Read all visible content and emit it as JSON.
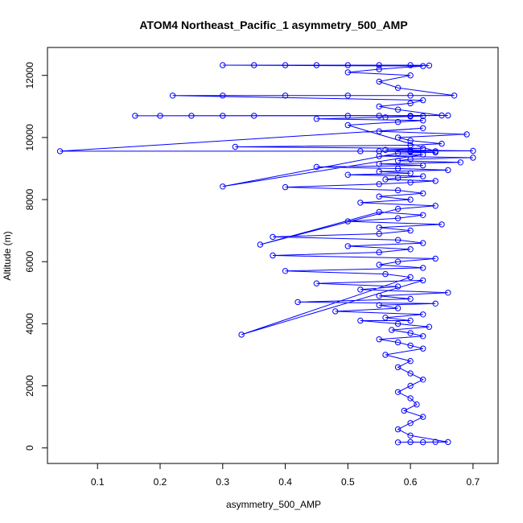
{
  "chart_data": {
    "type": "scatter",
    "title": "ATOM4 Northeast_Pacific_1 asymmetry_500_AMP",
    "xlabel": "asymmetry_500_AMP",
    "ylabel": "Altitude (m)",
    "xlim": [
      0.02,
      0.74
    ],
    "ylim": [
      -500,
      12900
    ],
    "x_ticks": [
      0.1,
      0.2,
      0.3,
      0.4,
      0.5,
      0.6,
      0.7
    ],
    "x_tick_labels": [
      "0.1",
      "0.2",
      "0.3",
      "0.4",
      "0.5",
      "0.6",
      "0.7"
    ],
    "y_ticks": [
      0,
      2000,
      4000,
      6000,
      8000,
      10000,
      12000
    ],
    "y_tick_labels": [
      "0",
      "2000",
      "4000",
      "6000",
      "8000",
      "10000",
      "12000"
    ],
    "series_color": "#0000ff",
    "marker": "open-circle",
    "connected": true,
    "grid": false,
    "legend": "none",
    "series": [
      {
        "x": [
          0.58,
          0.6,
          0.62,
          0.64,
          0.66,
          0.6,
          0.58,
          0.6,
          0.62,
          0.59,
          0.61,
          0.6,
          0.58,
          0.6,
          0.62,
          0.6,
          0.58,
          0.6,
          0.56,
          0.62,
          0.6,
          0.58,
          0.55,
          0.62,
          0.6,
          0.57,
          0.63,
          0.58,
          0.52,
          0.6,
          0.56,
          0.62,
          0.48,
          0.58,
          0.55,
          0.64,
          0.42,
          0.6,
          0.55,
          0.66,
          0.52,
          0.58,
          0.45,
          0.62,
          0.33,
          0.6,
          0.56,
          0.4,
          0.62,
          0.55,
          0.58,
          0.64,
          0.38,
          0.55,
          0.6,
          0.5,
          0.62,
          0.58,
          0.38,
          0.55,
          0.6,
          0.55,
          0.65,
          0.5,
          0.58,
          0.62,
          0.55,
          0.36,
          0.58,
          0.64,
          0.52,
          0.6,
          0.55,
          0.62,
          0.58,
          0.4,
          0.55,
          0.6,
          0.64,
          0.56,
          0.58,
          0.62,
          0.5,
          0.6,
          0.55,
          0.66,
          0.58,
          0.45,
          0.62,
          0.55,
          0.68,
          0.58,
          0.6,
          0.7,
          0.55,
          0.62,
          0.3,
          0.58,
          0.64,
          0.6,
          0.52,
          0.7,
          0.56,
          0.62,
          0.32,
          0.6,
          0.65,
          0.6,
          0.58,
          0.69,
          0.55,
          0.62,
          0.04,
          0.55,
          0.6,
          0.64,
          0.5,
          0.58,
          0.62,
          0.45,
          0.56,
          0.6,
          0.62,
          0.55,
          0.66,
          0.16,
          0.2,
          0.25,
          0.3,
          0.35,
          0.5,
          0.6,
          0.65,
          0.58,
          0.55,
          0.6,
          0.62,
          0.22,
          0.3,
          0.4,
          0.5,
          0.6,
          0.67,
          0.58,
          0.55,
          0.6,
          0.5,
          0.55,
          0.62,
          0.3,
          0.35,
          0.4,
          0.45,
          0.5,
          0.55,
          0.6,
          0.63
        ],
        "y": [
          180,
          190,
          185,
          195,
          190,
          400,
          600,
          800,
          1000,
          1200,
          1400,
          1600,
          1800,
          2000,
          2200,
          2400,
          2600,
          2800,
          3000,
          3200,
          3300,
          3400,
          3500,
          3600,
          3700,
          3800,
          3900,
          4000,
          4100,
          4100,
          4200,
          4300,
          4400,
          4500,
          4600,
          4650,
          4700,
          4800,
          4900,
          5000,
          5100,
          5200,
          5300,
          5400,
          3650,
          5500,
          5600,
          5700,
          5800,
          5900,
          6000,
          6100,
          6200,
          6300,
          6400,
          6500,
          6600,
          6700,
          6800,
          6900,
          7000,
          7100,
          7200,
          7300,
          7400,
          7500,
          7600,
          6550,
          7700,
          7800,
          7900,
          8000,
          8100,
          8200,
          8300,
          8400,
          8500,
          8550,
          8600,
          8650,
          8700,
          8750,
          8800,
          8850,
          8900,
          8950,
          9000,
          9050,
          9100,
          9150,
          9200,
          9250,
          9300,
          9350,
          9400,
          9450,
          8420,
          9500,
          9520,
          9540,
          9560,
          9570,
          9600,
          9650,
          9700,
          9750,
          9800,
          9900,
          10000,
          10100,
          10200,
          10300,
          9560,
          9560,
          9560,
          9560,
          10400,
          10500,
          10550,
          10600,
          10650,
          10680,
          10690,
          10700,
          10710,
          10700,
          10700,
          10700,
          10700,
          10700,
          10700,
          10700,
          10710,
          10900,
          11000,
          11100,
          11200,
          11350,
          11350,
          11350,
          11350,
          11350,
          11350,
          11600,
          11800,
          12000,
          12100,
          12200,
          12300,
          12330,
          12330,
          12330,
          12330,
          12330,
          12330,
          12330,
          12320
        ]
      }
    ]
  }
}
